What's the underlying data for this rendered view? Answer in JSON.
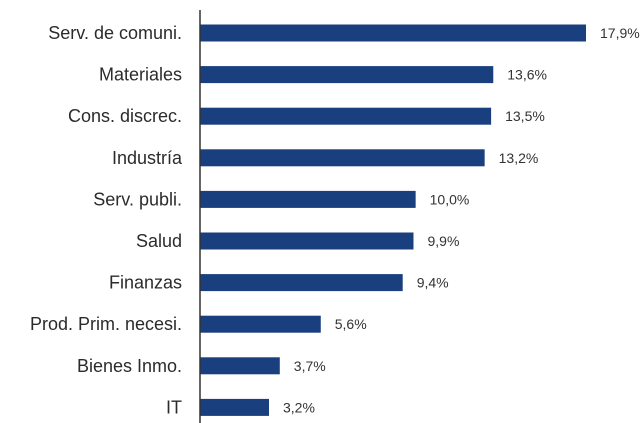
{
  "chart_data": {
    "type": "bar",
    "orientation": "horizontal",
    "categories": [
      "Serv. de comuni.",
      "Materiales",
      "Cons. discrec.",
      "Industría",
      "Serv. publi.",
      "Salud",
      "Finanzas",
      "Prod. Prim. necesi.",
      "Bienes Inmo.",
      "IT"
    ],
    "values": [
      17.9,
      13.6,
      13.5,
      13.2,
      10.0,
      9.9,
      9.4,
      5.6,
      3.7,
      3.2
    ],
    "value_labels": [
      "17,9%",
      "13,6%",
      "13,5%",
      "13,2%",
      "10,0%",
      "9,9%",
      "9,4%",
      "5,6%",
      "3,7%",
      "3,2%"
    ],
    "title": "",
    "xlabel": "",
    "ylabel": "",
    "xlim": [
      0,
      18
    ],
    "grid": false,
    "colors": {
      "bar": "#1a3f7f",
      "axis": "#333333"
    }
  }
}
